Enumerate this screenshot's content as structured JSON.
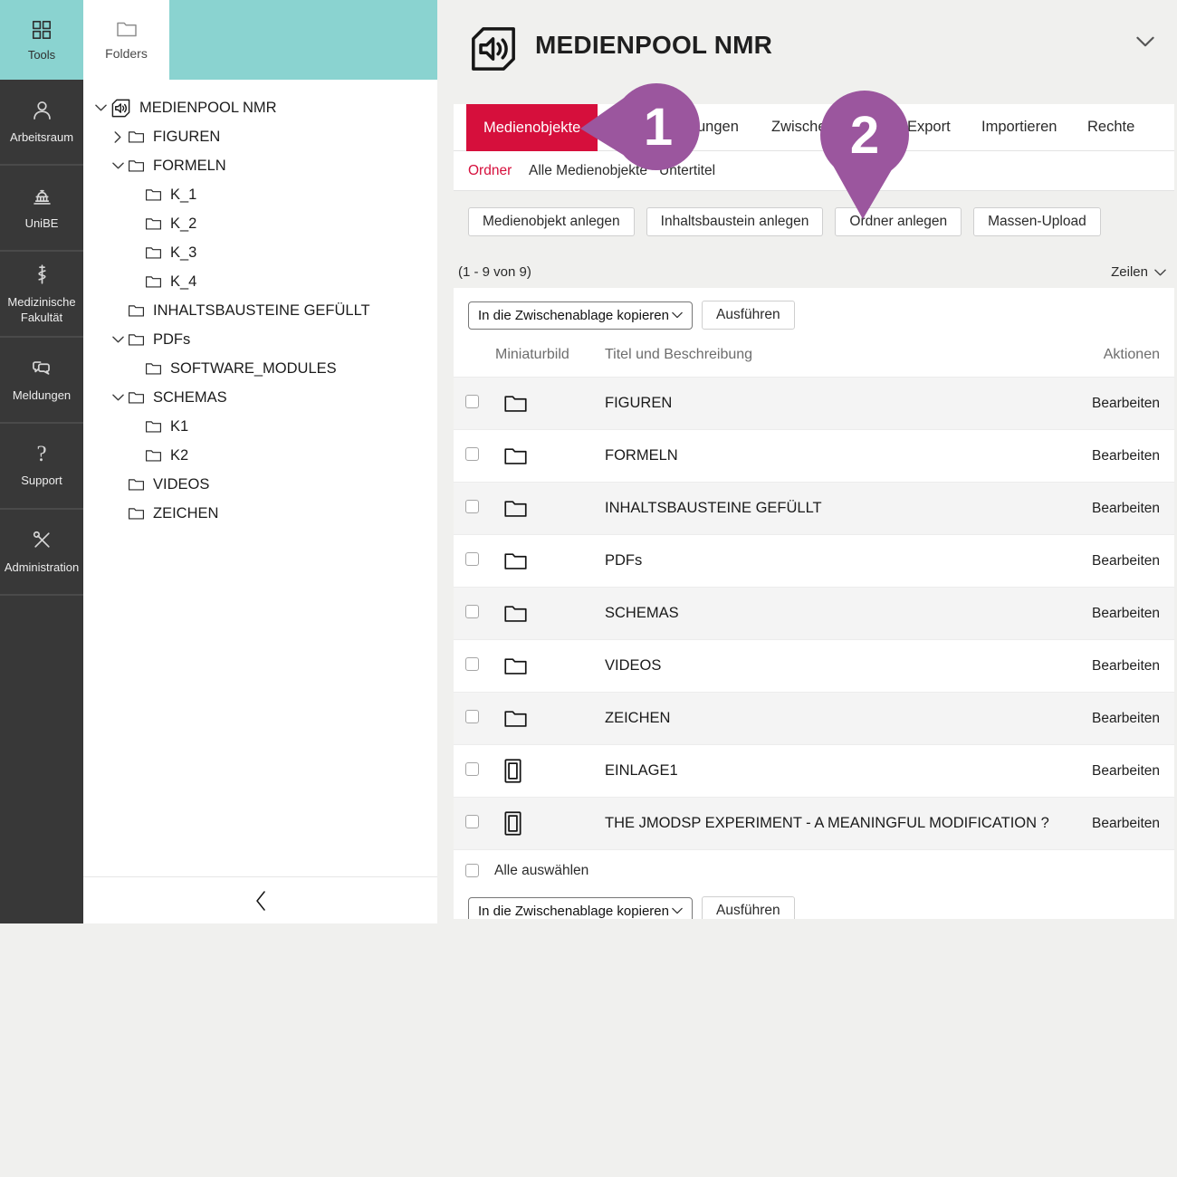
{
  "colors": {
    "teal": "#8ad3d0",
    "accent_red": "#d60f3c",
    "annotation_purple": "#9b569e",
    "sidebar_dark": "#383838"
  },
  "activity_bar": {
    "tools_label": "Tools",
    "items": [
      {
        "label": "Arbeitsraum",
        "icon": "person-icon"
      },
      {
        "label": "UniBE",
        "icon": "university-icon"
      },
      {
        "label": "Medizinische Fakultät",
        "icon": "medical-staff-icon"
      },
      {
        "label": "Meldungen",
        "icon": "chat-bubbles-icon"
      },
      {
        "label": "Support",
        "icon": "question-mark-icon"
      },
      {
        "label": "Administration",
        "icon": "admin-tools-icon"
      }
    ]
  },
  "folders_panel": {
    "tab_label": "Folders",
    "tree": [
      {
        "label": "MEDIENPOOL NMR",
        "level": 0,
        "expander": "down",
        "icon": "mediapool-icon"
      },
      {
        "label": "FIGUREN",
        "level": 1,
        "expander": "right",
        "icon": "folder-icon"
      },
      {
        "label": "FORMELN",
        "level": 1,
        "expander": "down",
        "icon": "folder-icon"
      },
      {
        "label": "K_1",
        "level": 2,
        "expander": null,
        "icon": "folder-icon"
      },
      {
        "label": "K_2",
        "level": 2,
        "expander": null,
        "icon": "folder-icon"
      },
      {
        "label": "K_3",
        "level": 2,
        "expander": null,
        "icon": "folder-icon"
      },
      {
        "label": "K_4",
        "level": 2,
        "expander": null,
        "icon": "folder-icon"
      },
      {
        "label": "INHALTSBAUSTEINE GEFÜLLT",
        "level": 1,
        "expander": null,
        "icon": "folder-icon"
      },
      {
        "label": "PDFs",
        "level": 1,
        "expander": "down",
        "icon": "folder-icon"
      },
      {
        "label": "SOFTWARE_MODULES",
        "level": 2,
        "expander": null,
        "icon": "folder-icon"
      },
      {
        "label": "SCHEMAS",
        "level": 1,
        "expander": "down",
        "icon": "folder-icon"
      },
      {
        "label": "K1",
        "level": 2,
        "expander": null,
        "icon": "folder-icon"
      },
      {
        "label": "K2",
        "level": 2,
        "expander": null,
        "icon": "folder-icon"
      },
      {
        "label": "VIDEOS",
        "level": 1,
        "expander": null,
        "icon": "folder-icon"
      },
      {
        "label": "ZEICHEN",
        "level": 1,
        "expander": null,
        "icon": "folder-icon"
      }
    ]
  },
  "main": {
    "title": "MEDIENPOOL NMR",
    "tabs": [
      {
        "label": "Medienobjekte",
        "active": true
      },
      {
        "label": "ungen",
        "active": false
      },
      {
        "label": "Zwische",
        "active": false
      },
      {
        "label": "Export",
        "active": false
      },
      {
        "label": "Importieren",
        "active": false
      },
      {
        "label": "Rechte",
        "active": false
      }
    ],
    "subtabs": [
      {
        "label": "Ordner",
        "active": true
      },
      {
        "label": "Alle Medienobjekte",
        "active": false
      },
      {
        "label": "Untertitel",
        "active": false
      }
    ],
    "action_buttons": [
      "Medienobjekt anlegen",
      "Inhaltsbaustein anlegen",
      "Ordner anlegen",
      "Massen-Upload"
    ],
    "count_label": "(1 - 9 von 9)",
    "rows_control_label": "Zeilen",
    "bulk_action_value": "In die Zwischenablage kopieren",
    "execute_label": "Ausführen",
    "table": {
      "columns": [
        "Miniaturbild",
        "Titel und Beschreibung",
        "Aktionen"
      ],
      "rows": [
        {
          "title": "FIGUREN",
          "icon": "folder-icon",
          "action": "Bearbeiten"
        },
        {
          "title": "FORMELN",
          "icon": "folder-icon",
          "action": "Bearbeiten"
        },
        {
          "title": "INHALTSBAUSTEINE GEFÜLLT",
          "icon": "folder-icon",
          "action": "Bearbeiten"
        },
        {
          "title": "PDFs",
          "icon": "folder-icon",
          "action": "Bearbeiten"
        },
        {
          "title": "SCHEMAS",
          "icon": "folder-icon",
          "action": "Bearbeiten"
        },
        {
          "title": "VIDEOS",
          "icon": "folder-icon",
          "action": "Bearbeiten"
        },
        {
          "title": "ZEICHEN",
          "icon": "folder-icon",
          "action": "Bearbeiten"
        },
        {
          "title": "EINLAGE1",
          "icon": "document-icon",
          "action": "Bearbeiten"
        },
        {
          "title": "THE JMODSP EXPERIMENT - A MEANINGFUL MODIFICATION ?",
          "icon": "document-icon",
          "action": "Bearbeiten"
        }
      ]
    },
    "select_all_label": "Alle auswählen"
  },
  "annotations": [
    {
      "number": "1"
    },
    {
      "number": "2"
    }
  ]
}
